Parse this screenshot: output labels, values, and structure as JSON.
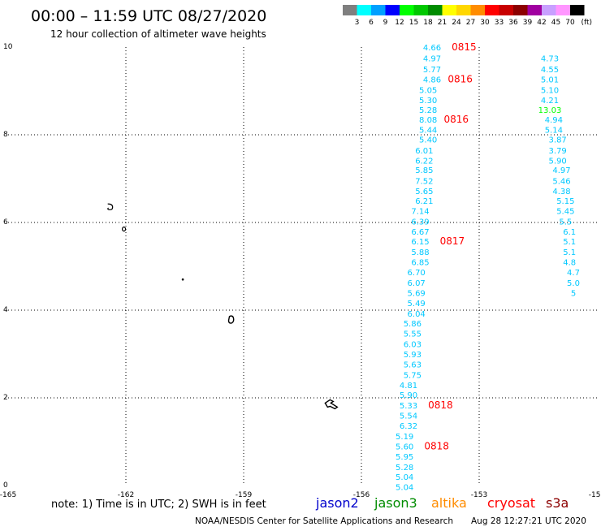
{
  "header": {
    "title": "00:00 – 11:59 UTC 08/27/2020",
    "subtitle": "12 hour collection of altimeter wave heights"
  },
  "legend": {
    "unit": "(ft)",
    "bins": [
      {
        "label": "3",
        "color": "#7f7f7f"
      },
      {
        "label": "6",
        "color": "#00ffff"
      },
      {
        "label": "9",
        "color": "#00a0ff"
      },
      {
        "label": "12",
        "color": "#0000ff"
      },
      {
        "label": "15",
        "color": "#00ff00"
      },
      {
        "label": "18",
        "color": "#00c800"
      },
      {
        "label": "21",
        "color": "#008c00"
      },
      {
        "label": "24",
        "color": "#ffff00"
      },
      {
        "label": "27",
        "color": "#ffd700"
      },
      {
        "label": "30",
        "color": "#ff8c00"
      },
      {
        "label": "33",
        "color": "#ff0000"
      },
      {
        "label": "36",
        "color": "#c80000"
      },
      {
        "label": "39",
        "color": "#8c0000"
      },
      {
        "label": "42",
        "color": "#a000a0"
      },
      {
        "label": "45",
        "color": "#c8a0ff"
      },
      {
        "label": "70",
        "color": "#ff96ff"
      },
      {
        "label": "",
        "color": "#000000"
      }
    ]
  },
  "footer": {
    "note": "note: 1) Time is in UTC; 2) SWH is in feet",
    "credit": "NOAA/NESDIS Center for Satellite Applications and Research",
    "timestamp": "Aug 28 12:27:21 UTC 2020",
    "satellites": [
      {
        "name": "jason2",
        "color": "#0000cc"
      },
      {
        "name": "jason3",
        "color": "#008c00"
      },
      {
        "name": "altika",
        "color": "#ff8c00"
      },
      {
        "name": "cryosat",
        "color": "#ff0000"
      },
      {
        "name": "s3a",
        "color": "#8c0000"
      }
    ]
  },
  "chart_data": {
    "type": "scatter",
    "xlim": [
      -165,
      -150
    ],
    "ylim": [
      0,
      10
    ],
    "x_ticks": [
      "-165",
      "-162",
      "-159",
      "-156",
      "-153",
      "-150"
    ],
    "y_ticks": [
      "0",
      "2",
      "4",
      "6",
      "8",
      "10"
    ],
    "grid": true,
    "colors": {
      "track": "#00c8ff",
      "track_high": "#00ff00",
      "time": "#ff0000",
      "island": "#000000"
    },
    "tracks": [
      {
        "points": [
          {
            "lon": -154.2,
            "lat": 10.0,
            "v": "4.66"
          },
          {
            "lon": -154.2,
            "lat": 9.75,
            "v": "4.97"
          },
          {
            "lon": -154.2,
            "lat": 9.5,
            "v": "5.77"
          },
          {
            "lon": -154.2,
            "lat": 9.27,
            "v": "4.86"
          },
          {
            "lon": -154.3,
            "lat": 9.03,
            "v": "5.05"
          },
          {
            "lon": -154.3,
            "lat": 8.8,
            "v": "5.30"
          },
          {
            "lon": -154.3,
            "lat": 8.57,
            "v": "5.28"
          },
          {
            "lon": -154.3,
            "lat": 8.35,
            "v": "8.08"
          },
          {
            "lon": -154.3,
            "lat": 8.12,
            "v": "5.44"
          },
          {
            "lon": -154.3,
            "lat": 7.9,
            "v": "5.40"
          },
          {
            "lon": -154.4,
            "lat": 7.65,
            "v": "6.01"
          },
          {
            "lon": -154.4,
            "lat": 7.42,
            "v": "6.22"
          },
          {
            "lon": -154.4,
            "lat": 7.2,
            "v": "5.85"
          },
          {
            "lon": -154.4,
            "lat": 6.95,
            "v": "7.52"
          },
          {
            "lon": -154.4,
            "lat": 6.72,
            "v": "5.65"
          },
          {
            "lon": -154.4,
            "lat": 6.5,
            "v": "6.21"
          },
          {
            "lon": -154.5,
            "lat": 6.27,
            "v": "7.14"
          },
          {
            "lon": -154.5,
            "lat": 6.03,
            "v": "6.39"
          },
          {
            "lon": -154.5,
            "lat": 5.8,
            "v": "6.67"
          },
          {
            "lon": -154.5,
            "lat": 5.57,
            "v": "6.15"
          },
          {
            "lon": -154.5,
            "lat": 5.33,
            "v": "5.88"
          },
          {
            "lon": -154.5,
            "lat": 5.1,
            "v": "6.85"
          },
          {
            "lon": -154.6,
            "lat": 4.87,
            "v": "6.70"
          },
          {
            "lon": -154.6,
            "lat": 4.63,
            "v": "6.07"
          },
          {
            "lon": -154.6,
            "lat": 4.4,
            "v": "5.69"
          },
          {
            "lon": -154.6,
            "lat": 4.17,
            "v": "5.49"
          },
          {
            "lon": -154.6,
            "lat": 3.93,
            "v": "6.04"
          },
          {
            "lon": -154.7,
            "lat": 3.7,
            "v": "5.86"
          },
          {
            "lon": -154.7,
            "lat": 3.47,
            "v": "5.55"
          },
          {
            "lon": -154.7,
            "lat": 3.23,
            "v": "6.03"
          },
          {
            "lon": -154.7,
            "lat": 3.0,
            "v": "5.93"
          },
          {
            "lon": -154.7,
            "lat": 2.77,
            "v": "5.63"
          },
          {
            "lon": -154.7,
            "lat": 2.53,
            "v": "5.75"
          },
          {
            "lon": -154.8,
            "lat": 2.3,
            "v": "4.81"
          },
          {
            "lon": -154.8,
            "lat": 2.07,
            "v": "5.90"
          },
          {
            "lon": -154.8,
            "lat": 1.83,
            "v": "5.33"
          },
          {
            "lon": -154.8,
            "lat": 1.6,
            "v": "5.54"
          },
          {
            "lon": -154.8,
            "lat": 1.37,
            "v": "6.32"
          },
          {
            "lon": -154.9,
            "lat": 1.13,
            "v": "5.19"
          },
          {
            "lon": -154.9,
            "lat": 0.9,
            "v": "5.60"
          },
          {
            "lon": -154.9,
            "lat": 0.67,
            "v": "5.95"
          },
          {
            "lon": -154.9,
            "lat": 0.43,
            "v": "5.28"
          },
          {
            "lon": -154.9,
            "lat": 0.2,
            "v": "5.04"
          },
          {
            "lon": -154.9,
            "lat": -0.03,
            "v": "5.04"
          }
        ],
        "times": [
          {
            "lon": -153.7,
            "lat": 10.0,
            "label": "0815"
          },
          {
            "lon": -153.8,
            "lat": 9.27,
            "label": "0816"
          },
          {
            "lon": -153.9,
            "lat": 8.35,
            "label": "0816"
          },
          {
            "lon": -154.0,
            "lat": 5.57,
            "label": "0817"
          },
          {
            "lon": -154.3,
            "lat": 1.83,
            "label": "0818"
          },
          {
            "lon": -154.4,
            "lat": 0.9,
            "label": "0818"
          }
        ]
      },
      {
        "points": [
          {
            "lon": -151.2,
            "lat": 9.75,
            "v": "4.73"
          },
          {
            "lon": -151.2,
            "lat": 9.5,
            "v": "4.55"
          },
          {
            "lon": -151.2,
            "lat": 9.27,
            "v": "5.01"
          },
          {
            "lon": -151.2,
            "lat": 9.03,
            "v": "5.10"
          },
          {
            "lon": -151.2,
            "lat": 8.8,
            "v": "4.21"
          },
          {
            "lon": -151.2,
            "lat": 8.57,
            "v": "13.03",
            "high": true
          },
          {
            "lon": -151.1,
            "lat": 8.35,
            "v": "4.94"
          },
          {
            "lon": -151.1,
            "lat": 8.12,
            "v": "5.14"
          },
          {
            "lon": -151.0,
            "lat": 7.9,
            "v": "3.87"
          },
          {
            "lon": -151.0,
            "lat": 7.65,
            "v": "3.79"
          },
          {
            "lon": -151.0,
            "lat": 7.42,
            "v": "5.90"
          },
          {
            "lon": -150.9,
            "lat": 7.2,
            "v": "4.97"
          },
          {
            "lon": -150.9,
            "lat": 6.95,
            "v": "5.46"
          },
          {
            "lon": -150.9,
            "lat": 6.72,
            "v": "4.38"
          },
          {
            "lon": -150.8,
            "lat": 6.5,
            "v": "5.15"
          },
          {
            "lon": -150.8,
            "lat": 6.27,
            "v": "5.45"
          },
          {
            "lon": -150.8,
            "lat": 6.03,
            "v": "5.5"
          },
          {
            "lon": -150.7,
            "lat": 5.8,
            "v": "6.1"
          },
          {
            "lon": -150.7,
            "lat": 5.57,
            "v": "5.1"
          },
          {
            "lon": -150.7,
            "lat": 5.33,
            "v": "5.1"
          },
          {
            "lon": -150.7,
            "lat": 5.1,
            "v": "4.8"
          },
          {
            "lon": -150.6,
            "lat": 4.87,
            "v": "4.7"
          },
          {
            "lon": -150.6,
            "lat": 4.63,
            "v": "5.0"
          },
          {
            "lon": -150.6,
            "lat": 4.4,
            "v": "5"
          }
        ],
        "times": []
      }
    ],
    "islands": [
      {
        "lon": -162.4,
        "lat": 6.35,
        "kind": "ring"
      },
      {
        "lon": -162.05,
        "lat": 5.85,
        "kind": "ring-small"
      },
      {
        "lon": -160.55,
        "lat": 4.7,
        "kind": "dot"
      },
      {
        "lon": -159.3,
        "lat": 3.8,
        "kind": "blob"
      },
      {
        "lon": -156.8,
        "lat": 1.9,
        "kind": "atoll"
      }
    ]
  }
}
